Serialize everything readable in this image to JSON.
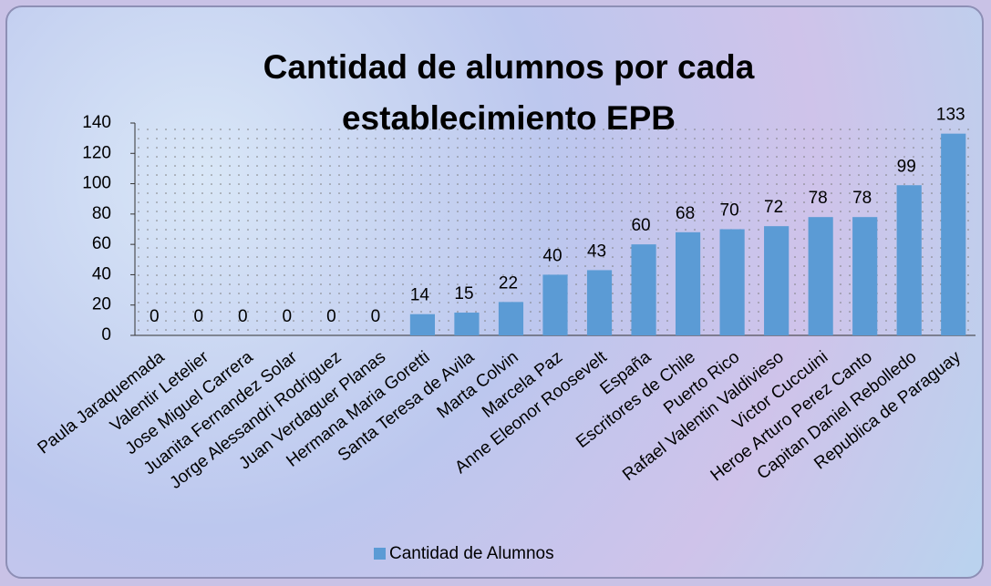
{
  "chart_data": {
    "type": "bar",
    "title": "Cantidad de alumnos por cada establecimiento EPB",
    "categories": [
      "Paula Jaraquemada",
      "Valentir Letelier",
      "Jose Miguel Carrera",
      "Juanita Fernandez Solar",
      "Jorge Alessandri Rodriguez",
      "Juan Verdaguer Planas",
      "Hermana Maria Goretti",
      "Santa Teresa de Avila",
      "Marta Colvin",
      "Marcela Paz",
      "Anne  Eleonor Roosevelt",
      "España",
      "Escritores de Chile",
      "Puerto Rico",
      "Rafael Valentin Valdivieso",
      "Victor Cuccuini",
      "Heroe Arturo Perez Canto",
      "Capitan Daniel Rebolledo",
      "Republica de Paraguay"
    ],
    "series": [
      {
        "name": "Cantidad de Alumnos",
        "color": "#5b9bd5",
        "values": [
          0,
          0,
          0,
          0,
          0,
          0,
          14,
          15,
          22,
          40,
          43,
          60,
          68,
          70,
          72,
          78,
          78,
          99,
          133
        ]
      }
    ],
    "ylim": [
      0,
      140
    ],
    "yticks": [
      0,
      20,
      40,
      60,
      80,
      100,
      120,
      140
    ],
    "legend": "bottom"
  }
}
